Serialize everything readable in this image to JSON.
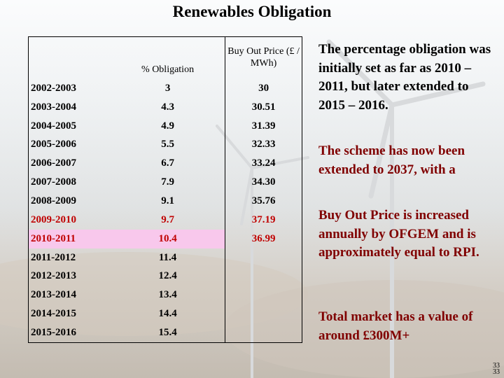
{
  "title": "Renewables Obligation",
  "table": {
    "columns": [
      "",
      "% Obligation",
      "Buy Out Price (£ / MWh)"
    ],
    "rows": [
      {
        "year": "2002-2003",
        "obligation": "3",
        "price": "30",
        "style": ""
      },
      {
        "year": "2003-2004",
        "obligation": "4.3",
        "price": "30.51",
        "style": ""
      },
      {
        "year": "2004-2005",
        "obligation": "4.9",
        "price": "31.39",
        "style": ""
      },
      {
        "year": "2005-2006",
        "obligation": "5.5",
        "price": "32.33",
        "style": ""
      },
      {
        "year": "2006-2007",
        "obligation": "6.7",
        "price": "33.24",
        "style": ""
      },
      {
        "year": "2007-2008",
        "obligation": "7.9",
        "price": "34.30",
        "style": ""
      },
      {
        "year": "2008-2009",
        "obligation": "9.1",
        "price": "35.76",
        "style": ""
      },
      {
        "year": "2009-2010",
        "obligation": "9.7",
        "price": "37.19",
        "style": "red"
      },
      {
        "year": "2010-2011",
        "obligation": "10.4",
        "price": "36.99",
        "style": "red hl"
      },
      {
        "year": "2011-2012",
        "obligation": "11.4",
        "price": "",
        "style": ""
      },
      {
        "year": "2012-2013",
        "obligation": "12.4",
        "price": "",
        "style": ""
      },
      {
        "year": "2013-2014",
        "obligation": "13.4",
        "price": "",
        "style": ""
      },
      {
        "year": "2014-2015",
        "obligation": "14.4",
        "price": "",
        "style": ""
      },
      {
        "year": "2015-2016",
        "obligation": "15.4",
        "price": "",
        "style": ""
      }
    ]
  },
  "notes": {
    "p1": "The percentage obligation was initially set as far as 2010 – 2011, but later extended to 2015 – 2016.",
    "p2": "The scheme has now been extended to 2037, with a",
    "p3": "Buy Out Price  is increased annually by OFGEM and is approximately equal to RPI.",
    "p4": "Total market has a value of around £300M+"
  },
  "page_number": "33",
  "page_number_shadow": "33",
  "colors": {
    "title_text": "#000000",
    "notes_black": "#000000",
    "notes_maroon": "#800000",
    "row_red": "#c00000",
    "row_highlight": "#f8c8ec"
  },
  "background": "wind turbines against a pale sky"
}
